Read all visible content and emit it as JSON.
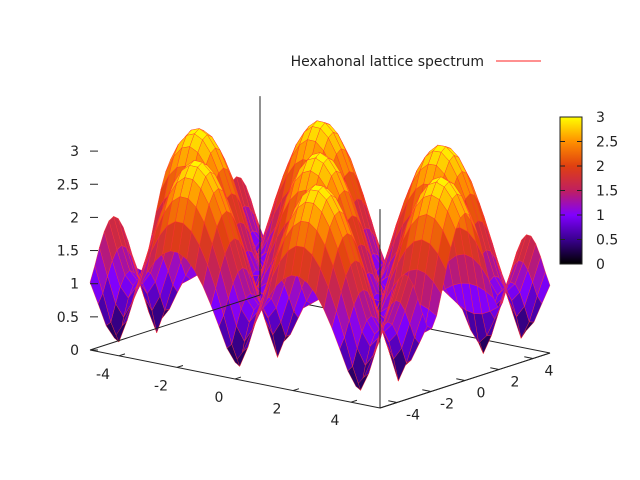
{
  "chart_data": {
    "type": "surface",
    "surface_function": "|e^(ik·a1)+e^(ik·a2)+e^(ik·a3)|, hexagonal lattice, a_i at 0°, 120°, 240°",
    "legend": {
      "label": "Hexahonal lattice spectrum",
      "line_color": "#ff2020",
      "placement": "top-right"
    },
    "x": {
      "range": [
        -5,
        5
      ],
      "ticks": [
        -4,
        -2,
        0,
        2,
        4
      ],
      "tick_labels": [
        "-4",
        "-2",
        "0",
        "2",
        "4"
      ]
    },
    "y": {
      "range": [
        -5,
        5
      ],
      "ticks": [
        -4,
        -2,
        0,
        2,
        4
      ],
      "tick_labels": [
        "-4",
        "-2",
        "0",
        "2",
        "4"
      ]
    },
    "z": {
      "range": [
        0,
        3
      ],
      "ticks": [
        0,
        0.5,
        1,
        1.5,
        2,
        2.5,
        3
      ],
      "tick_labels": [
        "0",
        "0.5",
        "1",
        "1.5",
        "2",
        "2.5",
        "3"
      ]
    },
    "colorbar": {
      "range": [
        0,
        3
      ],
      "ticks": [
        0,
        0.5,
        1,
        1.5,
        2,
        2.5,
        3
      ],
      "tick_labels": [
        "0",
        "0.5",
        "1",
        "1.5",
        "2",
        "2.5",
        "3"
      ],
      "palette": [
        "#000000",
        "#3a0090",
        "#8000ff",
        "#c01f60",
        "#e04010",
        "#ff9000",
        "#ffff00"
      ]
    },
    "mesh_color": "#ff3030",
    "grid_samples": 36,
    "title": "",
    "xlabel": "",
    "ylabel": "",
    "zlabel": ""
  }
}
